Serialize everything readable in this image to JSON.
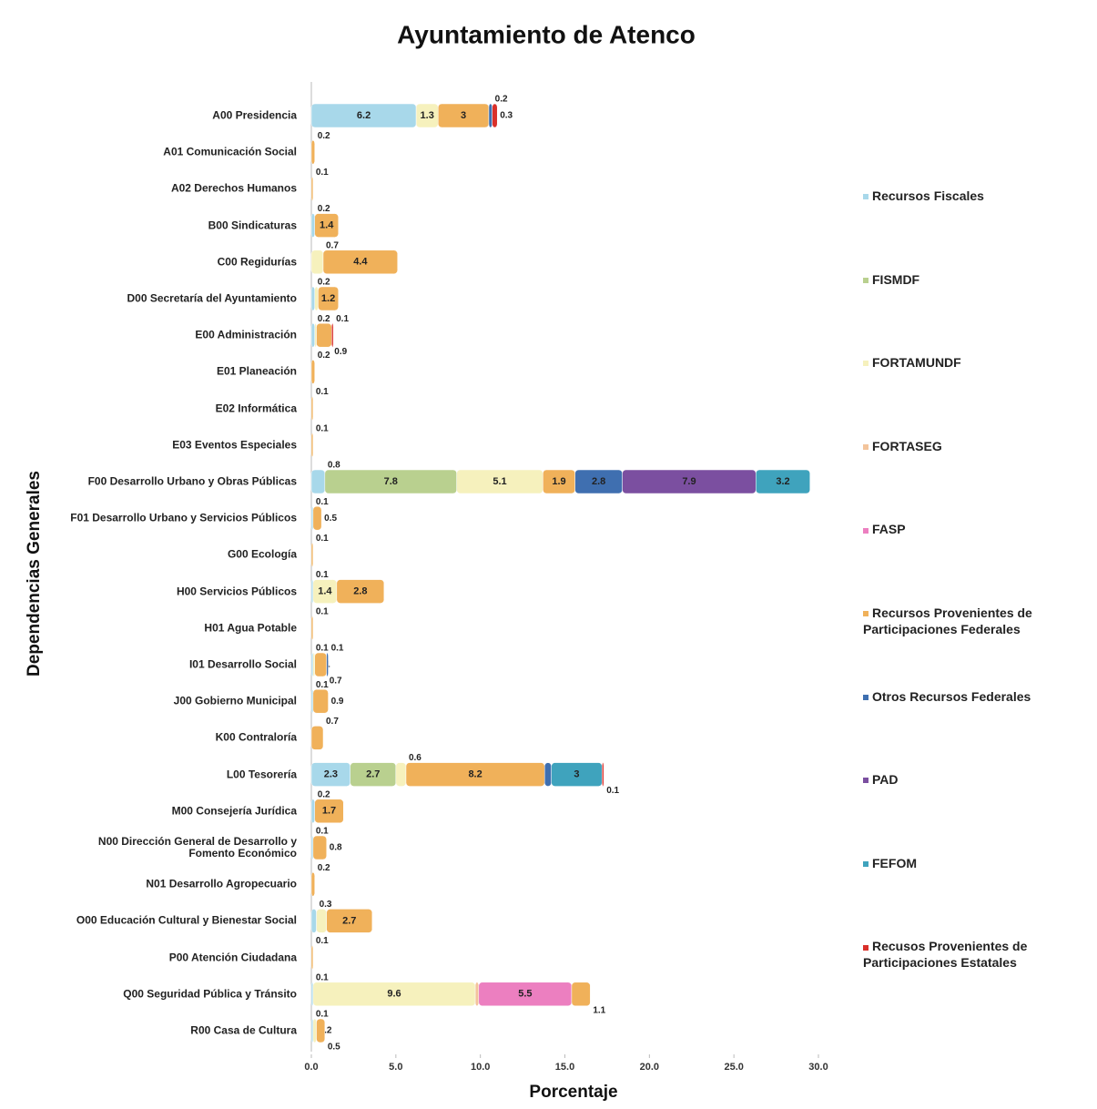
{
  "chart_data": {
    "type": "stacked_barh",
    "title": "Ayuntamiento de Atenco",
    "xlabel": "Porcentaje",
    "ylabel": "Dependencias Generales",
    "categories": [
      "A00 Presidencia",
      "A01 Comunicación Social",
      "A02 Derechos Humanos",
      "B00 Sindicaturas",
      "C00 Regidurías",
      "D00 Secretaría del Ayuntamiento",
      "E00 Administración",
      "E01 Planeación",
      "E02 Informática",
      "E03 Eventos Especiales",
      "F00 Desarrollo Urbano y Obras Públicas",
      "F01 Desarrollo Urbano y Servicios Públicos",
      "G00 Ecología",
      "H00 Servicios Públicos",
      "H01 Agua Potable",
      "I01 Desarrollo Social",
      "J00 Gobierno Municipal",
      "K00 Contraloría",
      "L00 Tesorería",
      "M00 Consejería Jurídica",
      "N00 Dirección General de Desarrollo y Fomento Económico",
      "N01 Desarrollo Agropecuario",
      "O00 Educación Cultural y Bienestar Social",
      "P00 Atención Ciudadana",
      "Q00 Seguridad Pública y Tránsito",
      "R00 Casa de Cultura"
    ],
    "series": [
      {
        "name": "Recursos Fiscales",
        "color": "#a8d8ea",
        "values": [
          6.2,
          null,
          null,
          0.2,
          null,
          0.2,
          0.2,
          null,
          null,
          null,
          0.8,
          0.1,
          null,
          0.1,
          null,
          0.1,
          0.1,
          null,
          2.3,
          0.2,
          0.1,
          null,
          0.3,
          null,
          0.1,
          0.1
        ]
      },
      {
        "name": "FISMDF",
        "color": "#b9d08f",
        "values": [
          null,
          null,
          null,
          null,
          null,
          null,
          null,
          null,
          null,
          null,
          7.8,
          null,
          null,
          null,
          null,
          null,
          null,
          null,
          2.7,
          null,
          null,
          null,
          null,
          null,
          null,
          null
        ]
      },
      {
        "name": "FORTAMUNDF",
        "color": "#f6f1bd",
        "values": [
          1.3,
          null,
          null,
          null,
          0.7,
          0.2,
          0.1,
          null,
          null,
          null,
          5.1,
          null,
          null,
          1.4,
          null,
          0.1,
          null,
          null,
          0.6,
          null,
          null,
          null,
          0.6,
          null,
          9.6,
          0.2
        ]
      },
      {
        "name": "FORTASEG",
        "color": "#f3c49b",
        "values": [
          null,
          null,
          null,
          null,
          null,
          null,
          null,
          null,
          null,
          null,
          null,
          null,
          null,
          null,
          null,
          null,
          null,
          null,
          null,
          null,
          null,
          null,
          null,
          null,
          0.2,
          null
        ]
      },
      {
        "name": "FASP",
        "color": "#ec7fc0",
        "values": [
          null,
          null,
          null,
          null,
          null,
          null,
          null,
          null,
          null,
          null,
          null,
          null,
          null,
          null,
          null,
          null,
          null,
          null,
          null,
          null,
          null,
          null,
          null,
          null,
          5.5,
          null
        ]
      },
      {
        "name": "Recursos Provenientes de Participaciones Federales",
        "color": "#f0b15a",
        "values": [
          3.0,
          0.2,
          0.1,
          1.4,
          4.4,
          1.2,
          0.9,
          0.2,
          0.1,
          0.1,
          1.9,
          0.5,
          0.1,
          2.8,
          0.1,
          0.7,
          0.9,
          0.7,
          8.2,
          1.7,
          0.8,
          0.2,
          2.7,
          0.1,
          1.1,
          0.5
        ]
      },
      {
        "name": "Otros Recursos Federales",
        "color": "#3f6fb0",
        "values": [
          0.2,
          null,
          null,
          null,
          null,
          null,
          null,
          null,
          null,
          null,
          2.8,
          null,
          null,
          null,
          null,
          0.1,
          null,
          null,
          0.4,
          null,
          null,
          null,
          null,
          null,
          null,
          null
        ]
      },
      {
        "name": "PAD",
        "color": "#7b4fa0",
        "values": [
          null,
          null,
          null,
          null,
          null,
          null,
          null,
          null,
          null,
          null,
          7.9,
          null,
          null,
          null,
          null,
          null,
          null,
          null,
          null,
          null,
          null,
          null,
          null,
          null,
          null,
          null
        ]
      },
      {
        "name": "FEFOM",
        "color": "#3fa3bd",
        "values": [
          null,
          null,
          null,
          null,
          null,
          null,
          null,
          null,
          null,
          null,
          3.2,
          null,
          null,
          null,
          null,
          null,
          null,
          null,
          3.0,
          null,
          null,
          null,
          null,
          null,
          null,
          null
        ]
      },
      {
        "name": "Recusos Provenientes de Participaciones Estatales",
        "color": "#d9302a",
        "values": [
          0.3,
          null,
          null,
          null,
          null,
          null,
          0.1,
          null,
          null,
          null,
          null,
          null,
          null,
          null,
          null,
          null,
          null,
          null,
          0.1,
          null,
          null,
          null,
          null,
          null,
          null,
          null
        ]
      }
    ],
    "xlim": [
      0,
      30
    ],
    "xticks": [
      {
        "value": 0,
        "label": "0.0"
      },
      {
        "value": 5,
        "label": "5.0"
      },
      {
        "value": 10,
        "label": "10.0"
      },
      {
        "value": 15,
        "label": "15.0"
      },
      {
        "value": 20,
        "label": "20.0"
      },
      {
        "value": 25,
        "label": "25.0"
      },
      {
        "value": 30,
        "label": "30.0"
      }
    ]
  }
}
